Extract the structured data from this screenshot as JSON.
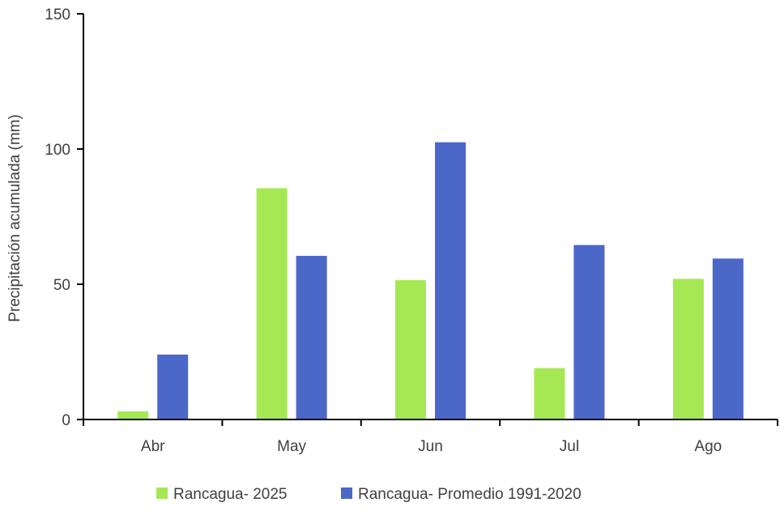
{
  "chart_data": {
    "type": "bar",
    "title": "",
    "xlabel": "",
    "ylabel": "Precipitación acumulada (mm)",
    "categories": [
      "Abr",
      "May",
      "Jun",
      "Jul",
      "Ago"
    ],
    "series": [
      {
        "name": "Rancagua- 2025",
        "color": "#a6e854",
        "values": [
          3,
          85.5,
          51.5,
          19,
          52
        ]
      },
      {
        "name": "Rancagua- Promedio 1991-2020",
        "color": "#4b67c8",
        "values": [
          24,
          60.5,
          102.5,
          64.5,
          59.5
        ]
      }
    ],
    "ylim": [
      0,
      150
    ],
    "yticks": [
      0,
      50,
      100,
      150
    ],
    "grid": false,
    "legend_position": "bottom"
  }
}
